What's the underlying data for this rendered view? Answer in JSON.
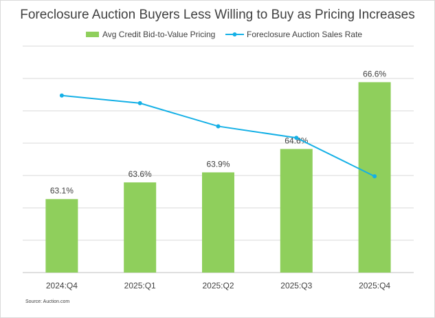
{
  "chart_data": {
    "type": "bar",
    "title": "Foreclosure Auction Buyers Less Willing to Buy as Pricing Increases",
    "categories": [
      "2024:Q4",
      "2025:Q1",
      "2025:Q2",
      "2025:Q3",
      "2025:Q4"
    ],
    "series": [
      {
        "name": "Avg Credit Bid-to-Value Pricing",
        "type": "bar",
        "values": [
          63.1,
          63.6,
          63.9,
          64.6,
          66.6
        ],
        "labels": [
          "63.1%",
          "63.6%",
          "63.9%",
          "64.6%",
          "66.6%"
        ],
        "color": "#8fcf5c"
      },
      {
        "name": "Foreclosure Auction Sales Rate",
        "type": "line",
        "axis": "secondary-hidden",
        "values": [
          6.0,
          5.8,
          5.2,
          4.9,
          3.9
        ],
        "color": "#14b0e6"
      }
    ],
    "ylim": [
      60.9,
      67.7
    ],
    "secondary_ylim": [
      1.4,
      7.3
    ],
    "gridlines": true,
    "legend": "top",
    "y_axis_labels_shown": false
  },
  "source": "Source: Auction.com"
}
